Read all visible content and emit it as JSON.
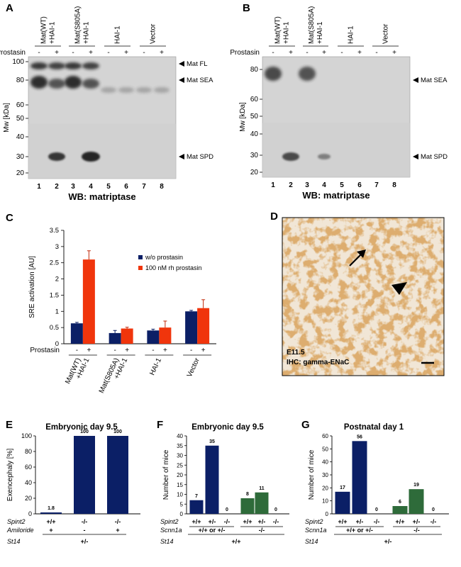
{
  "colors": {
    "navy": "#0b1f66",
    "red": "#f0350c",
    "green": "#2e6b3a",
    "blot_dark": "#1a1a1a",
    "ihc_stain": "#b86a2a"
  },
  "panelA": {
    "letter": "A",
    "lane_groups": [
      "Mat(WT)\n+HAI-1",
      "Mat(S805A)\n+HAI-1",
      "HAI-1",
      "Vector"
    ],
    "treatment_label": "Prostasin",
    "signs": [
      "-",
      "+",
      "-",
      "+",
      "-",
      "+",
      "-",
      "+"
    ],
    "y_title": "Mw [kDa]",
    "y_ticks": [
      "100",
      "80",
      "60",
      "50",
      "40",
      "30",
      "20"
    ],
    "lanes": [
      "1",
      "2",
      "3",
      "4",
      "5",
      "6",
      "7",
      "8"
    ],
    "bands": [
      "Mat FL",
      "Mat SEA",
      "Mat SPD"
    ],
    "caption": "WB: matriptase"
  },
  "panelB": {
    "letter": "B",
    "lane_groups": [
      "Mat(WT)\n+HAI-1",
      "Mat(S805A)\n+HAI-1",
      "HAI-1",
      "Vector"
    ],
    "treatment_label": "Prostasin",
    "signs": [
      "-",
      "+",
      "-",
      "+",
      "-",
      "+",
      "-",
      "+"
    ],
    "y_title": "Mw [kDa]",
    "y_ticks": [
      "80",
      "60",
      "50",
      "40",
      "30",
      "20"
    ],
    "lanes": [
      "1",
      "2",
      "3",
      "4",
      "5",
      "6",
      "7",
      "8"
    ],
    "bands": [
      "Mat SEA",
      "Mat SPD"
    ],
    "caption": "WB: matriptase"
  },
  "panelD": {
    "letter": "D",
    "stage": "E11.5",
    "stain": "IHC: gamma-ENaC"
  },
  "chart_data": [
    {
      "panel": "C",
      "type": "bar",
      "ylabel": "SRE activation [AU]",
      "ylim": [
        0,
        3.5
      ],
      "yticks": [
        "0",
        "0.5",
        "1",
        "1.5",
        "2",
        "2.5",
        "3",
        "3.5"
      ],
      "categories": [
        "Mat(WT)\n+HAI-1",
        "Mat(S805A)\n+HAI-1",
        "HAI-1",
        "Vector"
      ],
      "treatment_label": "Prostasin",
      "signs": [
        "-",
        "+"
      ],
      "legend_position": "top-right",
      "series": [
        {
          "name": "w/o prostasin",
          "color": "#0b1f66",
          "values": [
            0.63,
            0.33,
            0.41,
            1.0
          ],
          "errors": [
            0.03,
            0.08,
            0.04,
            0.03
          ]
        },
        {
          "name": "100 nM rh prostasin",
          "color": "#f0350c",
          "values": [
            2.6,
            0.47,
            0.5,
            1.1
          ],
          "errors": [
            0.27,
            0.04,
            0.2,
            0.26
          ]
        }
      ]
    },
    {
      "panel": "E",
      "type": "bar",
      "title": "Embryonic day 9.5",
      "ylabel": "Exencephaly [%]",
      "ylim": [
        0,
        100
      ],
      "yticks": [
        "0",
        "20",
        "40",
        "60",
        "80",
        "100"
      ],
      "values": [
        1.8,
        100,
        100
      ],
      "value_labels": [
        "1.8",
        "100",
        "100"
      ],
      "colors": [
        "#0b1f66",
        "#0b1f66",
        "#0b1f66"
      ],
      "rows": [
        {
          "label": "Spint2",
          "values": [
            "+/+",
            "-/-",
            "-/-"
          ]
        },
        {
          "label": "Amiloride",
          "values": [
            "+",
            "-",
            "+"
          ]
        }
      ],
      "group": {
        "label": "St14",
        "value": "+/-"
      }
    },
    {
      "panel": "F",
      "type": "bar",
      "title": "Embryonic day 9.5",
      "ylabel": "Number of mice",
      "ylim": [
        0,
        40
      ],
      "yticks": [
        "0",
        "5",
        "10",
        "15",
        "20",
        "25",
        "30",
        "35",
        "40"
      ],
      "values": [
        7,
        35,
        0,
        8,
        11,
        0
      ],
      "value_labels": [
        "7",
        "35",
        "0",
        "8",
        "11",
        "0"
      ],
      "colors": [
        "#0b1f66",
        "#0b1f66",
        "#0b1f66",
        "#2e6b3a",
        "#2e6b3a",
        "#2e6b3a"
      ],
      "rows": [
        {
          "label": "Spint2",
          "values": [
            "+/+",
            "+/-",
            "-/-",
            "+/+",
            "+/-",
            "-/-"
          ]
        }
      ],
      "scnn": {
        "label": "Scnn1a",
        "values": [
          "+/+ or +/-",
          "-/-"
        ]
      },
      "group": {
        "label": "St14",
        "value": "+/+"
      }
    },
    {
      "panel": "G",
      "type": "bar",
      "title": "Postnatal day 1",
      "ylabel": "Number of mice",
      "ylim": [
        0,
        60
      ],
      "yticks": [
        "0",
        "10",
        "20",
        "30",
        "40",
        "50",
        "60"
      ],
      "values": [
        17,
        56,
        0,
        6,
        19,
        0
      ],
      "value_labels": [
        "17",
        "56",
        "0",
        "6",
        "19",
        "0"
      ],
      "colors": [
        "#0b1f66",
        "#0b1f66",
        "#0b1f66",
        "#2e6b3a",
        "#2e6b3a",
        "#2e6b3a"
      ],
      "rows": [
        {
          "label": "Spint2",
          "values": [
            "+/+",
            "+/-",
            "-/-",
            "+/+",
            "+/-",
            "-/-"
          ]
        }
      ],
      "scnn": {
        "label": "Scnn1a",
        "values": [
          "+/+ or +/-",
          "-/-"
        ]
      },
      "group": {
        "label": "St14",
        "value": "+/-"
      }
    }
  ]
}
